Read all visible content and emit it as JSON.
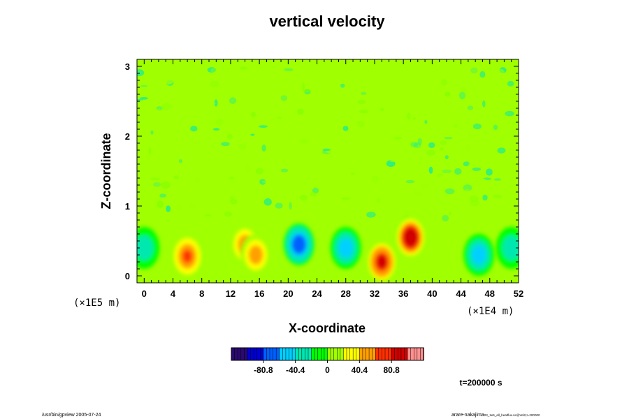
{
  "chart_data": {
    "type": "heatmap",
    "title": "vertical velocity",
    "xlabel": "X-coordinate",
    "ylabel": "Z-coordinate",
    "xlim": [
      -1,
      52
    ],
    "ylim": [
      -0.1,
      3.1
    ],
    "x_ticks": [
      "0",
      "4",
      "8",
      "12",
      "16",
      "20",
      "24",
      "28",
      "32",
      "36",
      "40",
      "44",
      "48",
      "52"
    ],
    "y_ticks": [
      "0",
      "1",
      "2",
      "3"
    ],
    "x_unit": "(×1E4 m)",
    "y_unit": "(×1E5 m)",
    "colorbar": {
      "range": [
        -121.2,
        121.2
      ],
      "ticks": [
        "-80.8",
        "-40.4",
        "0",
        "40.4",
        "80.8"
      ],
      "colors": [
        "#2a0a6e",
        "#0000d0",
        "#0060ff",
        "#00d0ff",
        "#00e8b0",
        "#00ff00",
        "#a0ff00",
        "#ffff00",
        "#ffa000",
        "#ff3000",
        "#d00000",
        "#ff9090"
      ]
    },
    "background_value": 0,
    "features": [
      {
        "kind": "updraft",
        "x": 6,
        "z": 0.28,
        "peak": 70
      },
      {
        "kind": "updraft",
        "x": 14,
        "z": 0.45,
        "peak": 60
      },
      {
        "kind": "updraft",
        "x": 15.5,
        "z": 0.3,
        "peak": 55
      },
      {
        "kind": "updraft",
        "x": 33,
        "z": 0.2,
        "peak": 85
      },
      {
        "kind": "updraft",
        "x": 37,
        "z": 0.55,
        "peak": 100
      },
      {
        "kind": "downdraft",
        "x": 21.5,
        "z": 0.45,
        "peak": -80
      },
      {
        "kind": "downdraft",
        "x": 28,
        "z": 0.4,
        "peak": -60
      },
      {
        "kind": "downdraft",
        "x": 46.5,
        "z": 0.3,
        "peak": -55
      },
      {
        "kind": "downdraft",
        "x": 0,
        "z": 0.4,
        "peak": -35
      },
      {
        "kind": "downdraft",
        "x": 51,
        "z": 0.4,
        "peak": -35
      }
    ]
  },
  "time_label": "t=200000 s",
  "footer_left": "/usr/bin/gpview 2005-07-24",
  "footer_right": "arare-nakajima",
  "footer_right_small": "03_1e5_all_heatflux.nc@Vel2,t=200000"
}
